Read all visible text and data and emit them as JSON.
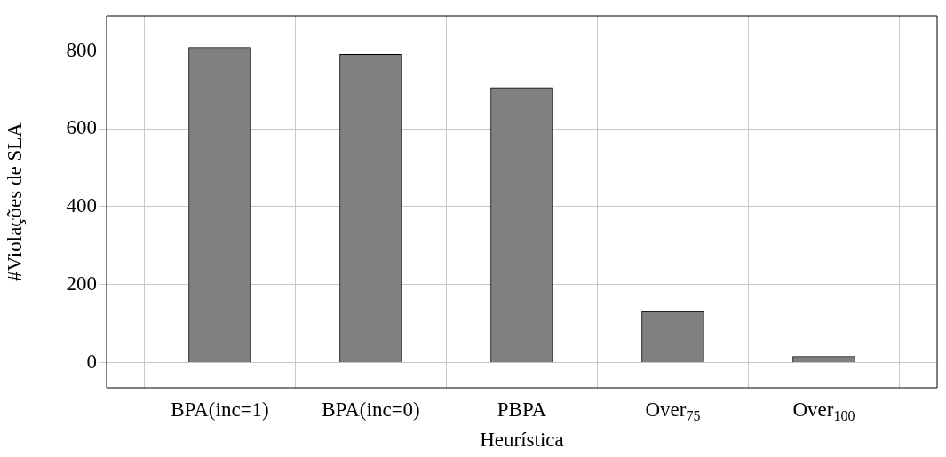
{
  "chart_data": {
    "type": "bar",
    "xlabel": "Heurística",
    "ylabel": "#Violações de SLA",
    "categories": [
      "BPA(inc=1)",
      "BPA(inc=0)",
      "PBPA",
      "Over$_{75}$",
      "Over$_{100}$"
    ],
    "values": [
      809,
      791,
      706,
      131,
      16
    ],
    "color": "#808080",
    "ylim": [
      -65,
      890
    ],
    "yticks": [
      0,
      200,
      400,
      600,
      800
    ],
    "grid": true
  }
}
